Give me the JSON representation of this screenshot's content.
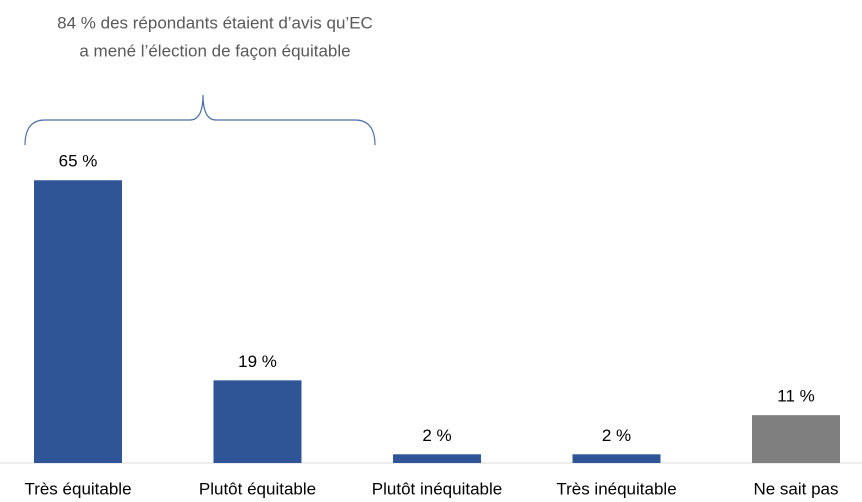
{
  "chart_data": {
    "type": "bar",
    "annotation": [
      "84 % des répondants étaient d’avis qu’EC",
      "a mené l’élection de façon équitable"
    ],
    "categories": [
      "Très équitable",
      "Plutôt équitable",
      "Plutôt inéquitable",
      "Très inéquitable",
      "Ne sait pas"
    ],
    "values": [
      65,
      19,
      2,
      2,
      11
    ],
    "value_labels": [
      "65 %",
      "19 %",
      "2 %",
      "2 %",
      "11 %"
    ],
    "colors": [
      "#2f5597",
      "#2f5597",
      "#2f5597",
      "#2f5597",
      "#7f7f7f"
    ]
  }
}
